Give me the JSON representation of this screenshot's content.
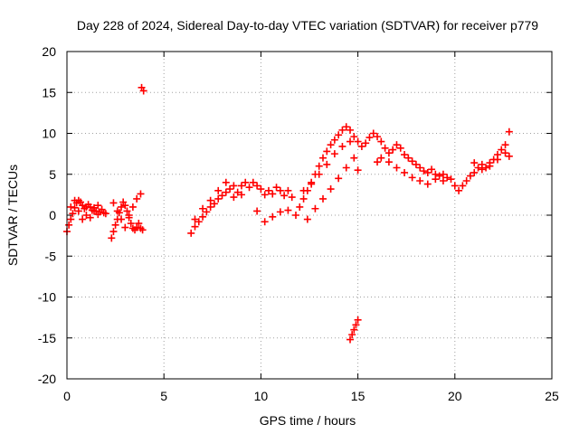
{
  "chart_data": {
    "type": "scatter",
    "title": "Day 228 of 2024, Sidereal Day-to-day VTEC variation (SDTVAR) for receiver p779",
    "xlabel": "GPS time / hours",
    "ylabel": "SDTVAR / TECUs",
    "xlim": [
      0,
      25
    ],
    "ylim": [
      -20,
      20
    ],
    "xticks": [
      0,
      5,
      10,
      15,
      20,
      25
    ],
    "yticks": [
      -20,
      -15,
      -10,
      -5,
      0,
      5,
      10,
      15,
      20
    ],
    "grid": true,
    "marker": "plus",
    "color": "#ff0000",
    "series": [
      {
        "name": "SDTVAR",
        "x": [
          0.0,
          0.1,
          0.2,
          0.3,
          0.4,
          0.5,
          0.6,
          0.7,
          0.8,
          0.9,
          1.0,
          1.1,
          1.2,
          1.3,
          1.4,
          1.5,
          1.6,
          1.7,
          1.8,
          1.9,
          2.0,
          0.2,
          0.4,
          0.6,
          0.8,
          1.0,
          1.2,
          1.4,
          1.6,
          2.3,
          2.4,
          2.5,
          2.6,
          2.7,
          2.8,
          2.9,
          3.0,
          3.1,
          3.2,
          3.3,
          3.4,
          3.5,
          3.6,
          3.7,
          3.8,
          3.9,
          2.4,
          2.6,
          2.8,
          3.0,
          3.2,
          3.4,
          3.6,
          3.8,
          3.85,
          3.95,
          6.4,
          6.6,
          6.8,
          7.0,
          7.2,
          7.4,
          7.6,
          7.8,
          8.0,
          8.2,
          8.4,
          8.6,
          8.8,
          9.0,
          9.2,
          9.4,
          6.6,
          7.0,
          7.4,
          7.8,
          8.2,
          8.6,
          9.0,
          9.6,
          9.8,
          10.0,
          10.2,
          10.4,
          10.6,
          10.8,
          11.0,
          11.2,
          11.4,
          11.6,
          9.8,
          10.2,
          10.6,
          11.0,
          11.4,
          11.8,
          12.0,
          12.2,
          12.4,
          12.6,
          12.8,
          13.0,
          13.2,
          13.4,
          13.6,
          13.8,
          14.0,
          14.2,
          14.4,
          14.6,
          14.8,
          15.0,
          12.4,
          12.8,
          13.2,
          13.6,
          14.0,
          14.4,
          14.8,
          12.2,
          12.6,
          13.0,
          13.4,
          13.8,
          14.2,
          14.6,
          14.6,
          14.7,
          14.8,
          14.9,
          15.0,
          15.2,
          15.4,
          15.6,
          15.8,
          16.0,
          16.2,
          16.4,
          16.6,
          16.8,
          17.0,
          17.2,
          17.4,
          17.6,
          17.8,
          18.0,
          18.2,
          18.4,
          18.6,
          18.8,
          19.0,
          19.2,
          19.4,
          19.6,
          16.2,
          16.6,
          17.0,
          17.4,
          17.8,
          18.2,
          18.6,
          19.0,
          19.4,
          19.8,
          15.0,
          16.0,
          20.0,
          20.2,
          20.4,
          20.6,
          20.8,
          21.0,
          21.2,
          21.4,
          21.6,
          21.8,
          22.0,
          22.2,
          22.4,
          22.6,
          22.8,
          21.0,
          21.4,
          21.8,
          22.2,
          22.6,
          22.8
        ],
        "y": [
          -2.0,
          -1.2,
          -0.5,
          0.2,
          0.9,
          1.5,
          1.8,
          1.6,
          1.2,
          0.8,
          1.0,
          1.3,
          1.0,
          0.6,
          0.9,
          0.5,
          0.1,
          0.4,
          0.7,
          0.3,
          0.2,
          1.0,
          1.8,
          0.5,
          -0.5,
          0.0,
          -0.3,
          0.5,
          1.2,
          -2.8,
          -2.0,
          -1.2,
          -0.5,
          0.3,
          1.0,
          1.6,
          1.2,
          0.5,
          -0.3,
          -1.0,
          -1.6,
          -1.8,
          -1.5,
          -1.0,
          -1.6,
          -1.8,
          1.5,
          0.5,
          -0.5,
          -1.5,
          0.0,
          1.0,
          2.0,
          2.6,
          15.6,
          15.2,
          -2.2,
          -1.4,
          -0.8,
          -0.2,
          0.4,
          1.0,
          1.4,
          2.0,
          2.4,
          2.8,
          3.2,
          3.6,
          2.8,
          3.6,
          4.0,
          3.4,
          -0.5,
          0.8,
          1.8,
          3.0,
          4.0,
          2.2,
          2.5,
          4.0,
          3.6,
          3.2,
          2.5,
          3.0,
          2.6,
          3.4,
          3.0,
          2.4,
          3.0,
          2.2,
          0.5,
          -0.8,
          -0.2,
          0.4,
          0.6,
          0.0,
          1.0,
          2.0,
          3.0,
          4.0,
          5.0,
          6.0,
          7.0,
          7.8,
          8.6,
          9.2,
          9.8,
          10.4,
          10.8,
          10.4,
          9.6,
          9.0,
          -0.5,
          0.8,
          2.0,
          3.2,
          4.5,
          5.8,
          7.0,
          3.0,
          3.8,
          5.0,
          6.2,
          7.5,
          8.4,
          9.0,
          -15.2,
          -14.6,
          -14.0,
          -13.4,
          -12.8,
          8.4,
          8.8,
          9.5,
          10.0,
          9.6,
          9.0,
          8.2,
          7.6,
          8.0,
          8.6,
          8.2,
          7.4,
          7.0,
          6.6,
          6.2,
          5.8,
          5.4,
          5.2,
          5.6,
          5.0,
          4.8,
          5.0,
          4.6,
          7.0,
          6.5,
          5.8,
          5.2,
          4.6,
          4.2,
          3.8,
          4.4,
          4.2,
          4.4,
          5.5,
          6.5,
          3.6,
          3.0,
          3.6,
          4.2,
          4.8,
          5.2,
          5.8,
          6.2,
          5.8,
          6.4,
          6.8,
          7.4,
          8.0,
          7.6,
          7.2,
          6.4,
          5.6,
          6.0,
          6.8,
          8.6,
          10.2
        ]
      }
    ]
  }
}
